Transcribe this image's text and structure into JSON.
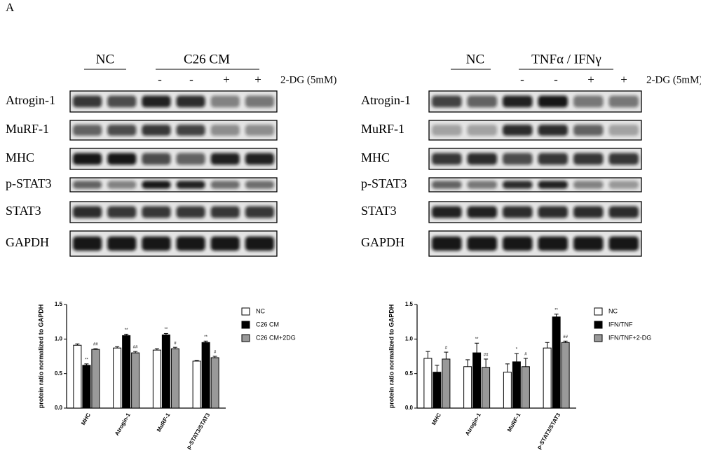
{
  "panel_label": "A",
  "blots": [
    {
      "groups": [
        "NC",
        "C26  CM"
      ],
      "signs": [
        "-",
        "-",
        "+",
        "+"
      ],
      "treatment": "2-DG (5mM)",
      "rows": [
        "Atrogin-1",
        "MuRF-1",
        "MHC",
        "p-STAT3",
        "STAT3",
        "GAPDH"
      ]
    },
    {
      "groups": [
        "NC",
        "TNFα / IFNγ"
      ],
      "signs": [
        "-",
        "-",
        "+",
        "+"
      ],
      "treatment": "2-DG (5mM)",
      "rows": [
        "Atrogin-1",
        "MuRF-1",
        "MHC",
        "p-STAT3",
        "STAT3",
        "GAPDH"
      ]
    }
  ],
  "chart_data": [
    {
      "type": "bar",
      "y_label": "protein ratio normalized to GAPDH",
      "categories": [
        "MHC",
        "Atrogin-1",
        "MuRF-1",
        "p-STAT3/STAT3"
      ],
      "ylim": [
        0,
        1.5
      ],
      "yticks": [
        {
          "value": 0,
          "label": "0.0"
        },
        0.5,
        {
          "value": 1,
          "label": "1.0"
        },
        1.5
      ],
      "series": [
        {
          "name": "NC",
          "color": "#ffffff",
          "values": [
            0.91,
            0.87,
            0.84,
            0.68
          ],
          "errors": [
            0.02,
            0.02,
            0.02,
            0.01
          ],
          "markers": [
            null,
            null,
            null,
            null
          ]
        },
        {
          "name": "C26 CM",
          "color": "#000000",
          "values": [
            0.62,
            1.05,
            1.06,
            0.95
          ],
          "errors": [
            0.02,
            0.02,
            0.02,
            0.02
          ],
          "markers": [
            "**",
            "**",
            "**",
            "**"
          ]
        },
        {
          "name": "C26 CM+2DG",
          "color": "#999999",
          "values": [
            0.85,
            0.8,
            0.86,
            0.73
          ],
          "errors": [
            0.01,
            0.02,
            0.02,
            0.02
          ],
          "markers": [
            "##",
            "##",
            "#",
            "#"
          ]
        }
      ]
    },
    {
      "type": "bar",
      "y_label": "protein ratio normalized to GAPDH",
      "categories": [
        "MHC",
        "Atrogin-1",
        "MuRF-1",
        "p-STAT3/STAT3"
      ],
      "ylim": [
        0,
        1.5
      ],
      "yticks": [
        {
          "value": 0,
          "label": "0.0"
        },
        0.5,
        {
          "value": 1,
          "label": "1.0"
        },
        1.5
      ],
      "series": [
        {
          "name": "NC",
          "color": "#ffffff",
          "values": [
            0.72,
            0.6,
            0.52,
            0.87
          ],
          "errors": [
            0.1,
            0.1,
            0.12,
            0.08
          ],
          "markers": [
            null,
            null,
            null,
            null
          ]
        },
        {
          "name": "IFN/TNF",
          "color": "#000000",
          "values": [
            0.52,
            0.8,
            0.67,
            1.32
          ],
          "errors": [
            0.1,
            0.14,
            0.12,
            0.04
          ],
          "markers": [
            null,
            "**",
            "*",
            "**"
          ]
        },
        {
          "name": "IFN/TNF+2-DG",
          "color": "#999999",
          "values": [
            0.71,
            0.59,
            0.6,
            0.95
          ],
          "errors": [
            0.1,
            0.12,
            0.12,
            0.02
          ],
          "markers": [
            "#",
            "##",
            "#",
            "##"
          ]
        }
      ]
    }
  ]
}
